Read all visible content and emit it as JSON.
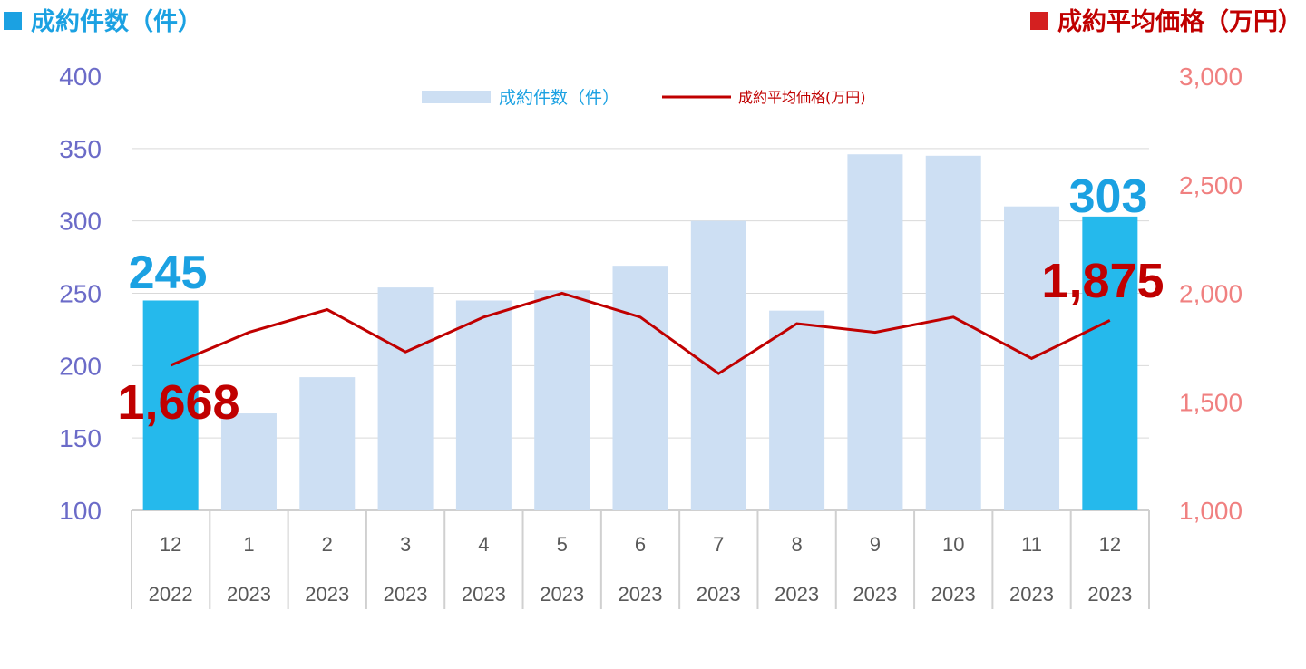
{
  "headers": {
    "left": "成約件数（件）",
    "right": "成約平均価格（万円）"
  },
  "colors": {
    "bar": "#cddff3",
    "bar_highlight": "#25b9ec",
    "line": "#c00000",
    "left_axis": "#6b6bc8",
    "right_axis": "#f08080",
    "left_header": "#1ba1e2",
    "right_header": "#c00000"
  },
  "chart_data": {
    "type": "bar+line",
    "categories": [
      {
        "month": "12",
        "year": "2022"
      },
      {
        "month": "1",
        "year": "2023"
      },
      {
        "month": "2",
        "year": "2023"
      },
      {
        "month": "3",
        "year": "2023"
      },
      {
        "month": "4",
        "year": "2023"
      },
      {
        "month": "5",
        "year": "2023"
      },
      {
        "month": "6",
        "year": "2023"
      },
      {
        "month": "7",
        "year": "2023"
      },
      {
        "month": "8",
        "year": "2023"
      },
      {
        "month": "9",
        "year": "2023"
      },
      {
        "month": "10",
        "year": "2023"
      },
      {
        "month": "11",
        "year": "2023"
      },
      {
        "month": "12",
        "year": "2023"
      }
    ],
    "series": [
      {
        "name": "成約件数（件）",
        "type": "bar",
        "axis": "left",
        "values": [
          245,
          167,
          192,
          254,
          245,
          252,
          269,
          300,
          238,
          346,
          345,
          310,
          303
        ],
        "highlight": [
          0,
          12
        ]
      },
      {
        "name": "成約平均価格(万円)",
        "type": "line",
        "axis": "right",
        "values": [
          1668,
          1820,
          1925,
          1730,
          1890,
          2000,
          1890,
          1630,
          1860,
          1820,
          1890,
          1700,
          1875
        ]
      }
    ],
    "y_left": {
      "min": 100,
      "max": 400,
      "ticks": [
        "100",
        "150",
        "200",
        "250",
        "300",
        "350",
        "400"
      ]
    },
    "y_right": {
      "min": 1000,
      "max": 3000,
      "ticks": [
        "1,000",
        "1,500",
        "2,000",
        "2,500",
        "3,000"
      ]
    },
    "annotations": {
      "bar_first": "245",
      "bar_last": "303",
      "line_first": "1,668",
      "line_last": "1,875"
    },
    "legend_position": "top-center",
    "grid": true
  }
}
